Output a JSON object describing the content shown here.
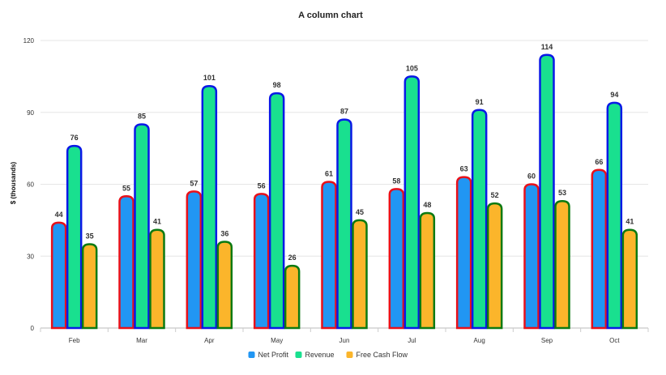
{
  "chart_data": {
    "type": "bar",
    "title": "A column chart",
    "xlabel": "",
    "ylabel": "$ (thousands)",
    "ylim": [
      0,
      120
    ],
    "yticks": [
      0,
      30,
      60,
      90,
      120
    ],
    "categories": [
      "Feb",
      "Mar",
      "Apr",
      "May",
      "Jun",
      "Jul",
      "Aug",
      "Sep",
      "Oct"
    ],
    "series": [
      {
        "name": "Net Profit",
        "color": "#2196f3",
        "border": "#e8111a",
        "values": [
          44,
          55,
          57,
          56,
          61,
          58,
          63,
          60,
          66
        ]
      },
      {
        "name": "Revenue",
        "color": "#19e08f",
        "border": "#0a19e6",
        "values": [
          76,
          85,
          101,
          98,
          87,
          105,
          91,
          114,
          94
        ]
      },
      {
        "name": "Free Cash Flow",
        "color": "#fbb52b",
        "border": "#0c7a12",
        "values": [
          35,
          41,
          36,
          26,
          45,
          48,
          52,
          53,
          41
        ]
      }
    ],
    "grid": true,
    "legend": "bottom-center"
  }
}
